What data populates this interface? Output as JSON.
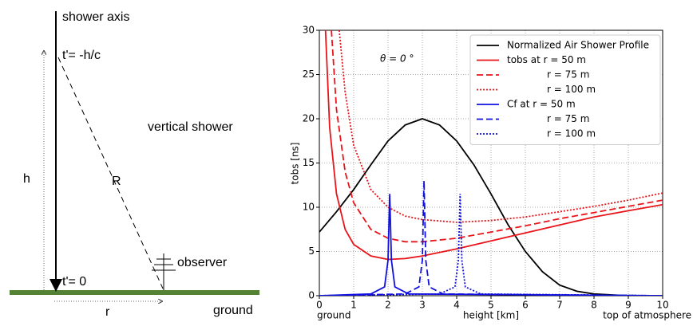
{
  "diagram": {
    "axis_label": "shower axis",
    "t_top": "t'= -h/c",
    "note": "vertical shower",
    "h_label": "h",
    "R_label": "R",
    "observer": "observer",
    "t_zero": "t'= 0",
    "r_label": "r",
    "ground": "ground"
  },
  "chart_data": {
    "type": "line",
    "annotation": "θ = 0 °",
    "y_label": "tobs [ns]",
    "x_label": "height [km]",
    "x_left_label": "ground",
    "x_right_label": "top of atmosphere",
    "xlim": [
      0,
      10
    ],
    "ylim": [
      0,
      30
    ],
    "xticks": [
      0,
      1,
      2,
      3,
      4,
      5,
      6,
      7,
      8,
      9,
      10
    ],
    "yticks": [
      0,
      5,
      10,
      15,
      20,
      25,
      30
    ],
    "grid": true,
    "legend": "upper right",
    "series": [
      {
        "name": "Normalized Air Shower Profile",
        "color": "#000000",
        "style": "solid",
        "x": [
          0,
          0.5,
          1,
          1.5,
          2,
          2.5,
          3,
          3.5,
          4,
          4.5,
          5,
          5.5,
          6,
          6.5,
          7,
          7.5,
          8,
          9,
          10
        ],
        "values": [
          7.2,
          9.5,
          12,
          14.8,
          17.5,
          19.3,
          20,
          19.3,
          17.5,
          14.8,
          11.5,
          8,
          5,
          2.7,
          1.2,
          0.5,
          0.2,
          0,
          0
        ]
      },
      {
        "name": "tobs at r = 50 m",
        "color": "#e8141a",
        "style": "solid",
        "x": [
          0.18,
          0.3,
          0.5,
          0.75,
          1,
          1.5,
          2,
          2.5,
          3,
          4,
          5,
          6,
          7,
          8,
          9,
          10
        ],
        "values": [
          30,
          19,
          11.5,
          7.5,
          5.8,
          4.5,
          4.1,
          4.2,
          4.5,
          5.3,
          6.2,
          7.1,
          8,
          8.9,
          9.6,
          10.3
        ]
      },
      {
        "name": "r = 75 m",
        "color": "#e8141a",
        "style": "dashed",
        "x": [
          0.35,
          0.5,
          0.75,
          1,
          1.5,
          2,
          2.5,
          3,
          4,
          5,
          6,
          7,
          8,
          9,
          10
        ],
        "values": [
          30,
          21,
          14,
          10.5,
          7.5,
          6.5,
          6.1,
          6.1,
          6.5,
          7.2,
          7.9,
          8.7,
          9.4,
          10.1,
          10.8
        ]
      },
      {
        "name": "r = 100 m",
        "color": "#e8141a",
        "style": "dotted",
        "x": [
          0.58,
          0.75,
          1,
          1.5,
          2,
          2.5,
          3,
          4,
          5,
          6,
          7,
          8,
          9,
          10
        ],
        "values": [
          30,
          23,
          17,
          12,
          10,
          9,
          8.6,
          8.3,
          8.5,
          8.9,
          9.5,
          10.1,
          10.8,
          11.6
        ]
      },
      {
        "name": "Cf at r = 50 m",
        "color": "#1010e0",
        "style": "solid",
        "x": [
          0,
          1.5,
          1.9,
          2,
          2.05,
          2.1,
          2.2,
          2.6,
          10
        ],
        "values": [
          0,
          0.2,
          1,
          4,
          11.5,
          4,
          1,
          0.2,
          0
        ]
      },
      {
        "name": "r = 75 m",
        "color": "#1010e0",
        "style": "dashed",
        "x": [
          0,
          2.5,
          2.9,
          3,
          3.05,
          3.1,
          3.2,
          3.6,
          10
        ],
        "values": [
          0,
          0.2,
          1,
          4,
          13,
          4,
          1,
          0.2,
          0
        ]
      },
      {
        "name": "r = 100 m",
        "color": "#1010e0",
        "style": "dotted",
        "x": [
          0,
          3.5,
          3.95,
          4.05,
          4.1,
          4.15,
          4.25,
          4.7,
          10
        ],
        "values": [
          0,
          0.2,
          1,
          4,
          11.5,
          4,
          1,
          0.2,
          0
        ]
      }
    ]
  }
}
